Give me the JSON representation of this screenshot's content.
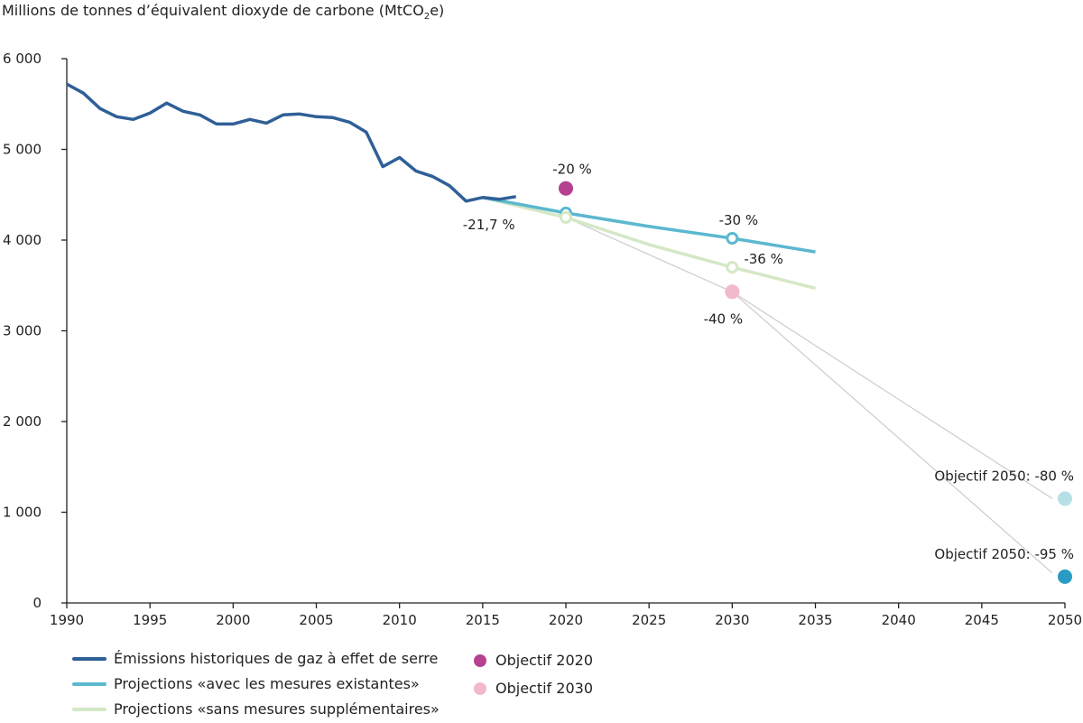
{
  "title": {
    "main": "Millions de tonnes d’équivalent dioxyde de carbone (MtCO",
    "sub": "2",
    "tail": "e)"
  },
  "colors": {
    "historical": "#2f5f97",
    "wem": "#5bb8cf",
    "wam": "#d4e8c6",
    "target2020": "#b5418f",
    "target2030": "#f2b8cc",
    "target2050_80": "#b6e0e6",
    "target2050_95": "#2a9bc4",
    "guide": "#cccccc",
    "axis": "#222222"
  },
  "chart_data": {
    "type": "line",
    "ylim": [
      0,
      6000
    ],
    "xlim": [
      1990,
      2050
    ],
    "yticks": [
      0,
      1000,
      2000,
      3000,
      4000,
      5000,
      6000
    ],
    "ytick_labels": [
      "0",
      "1 000",
      "2 000",
      "3 000",
      "4 000",
      "5 000",
      "6 000"
    ],
    "xticks": [
      1990,
      1995,
      2000,
      2005,
      2010,
      2015,
      2020,
      2025,
      2030,
      2035,
      2040,
      2045,
      2050
    ],
    "xtick_labels": [
      "1990",
      "1995",
      "2000",
      "2005",
      "2010",
      "2015",
      "2020",
      "2025",
      "2030",
      "2035",
      "2040",
      "2045",
      "2050"
    ],
    "series": [
      {
        "name": "Émissions historiques de gaz à effet de serre",
        "x": [
          1990,
          1991,
          1992,
          1993,
          1994,
          1995,
          1996,
          1997,
          1998,
          1999,
          2000,
          2001,
          2002,
          2003,
          2004,
          2005,
          2006,
          2007,
          2008,
          2009,
          2010,
          2011,
          2012,
          2013,
          2014,
          2015,
          2016,
          2017
        ],
        "y": [
          5720,
          5620,
          5450,
          5360,
          5330,
          5400,
          5510,
          5420,
          5380,
          5280,
          5280,
          5330,
          5290,
          5380,
          5390,
          5360,
          5350,
          5300,
          5190,
          4810,
          4910,
          4760,
          4700,
          4600,
          4430,
          4470,
          4450,
          4480
        ]
      },
      {
        "name": "Projections «avec les mesures existantes»",
        "x": [
          2015,
          2020,
          2025,
          2030,
          2035
        ],
        "y": [
          4470,
          4300,
          4150,
          4020,
          3870
        ]
      },
      {
        "name": "Projections «sans mesures supplémentaires»",
        "x": [
          2015,
          2020,
          2025,
          2030,
          2035
        ],
        "y": [
          4470,
          4250,
          3950,
          3700,
          3470
        ]
      }
    ],
    "points": [
      {
        "name": "Objectif 2020",
        "x": 2020,
        "y": 4570,
        "label": "-20 %"
      },
      {
        "name": "Objectif 2030",
        "x": 2030,
        "y": 3430,
        "label": "-40 %"
      },
      {
        "name": "Objectif 2050: -80 %",
        "x": 2050,
        "y": 1150,
        "label": "Objectif 2050: -80 %"
      },
      {
        "name": "Objectif 2050: -95 %",
        "x": 2050,
        "y": 290,
        "label": "Objectif 2050: -95 %"
      }
    ],
    "annotations": [
      {
        "text": "-21,7 %",
        "x": 2017,
        "y": 4470
      },
      {
        "text": "-30 %",
        "x": 2030,
        "y": 4020
      },
      {
        "text": "-36 %",
        "x": 2030,
        "y": 3700
      }
    ],
    "legend": {
      "placement": "bottom",
      "items": [
        "Émissions historiques de gaz à effet de serre",
        "Projections «avec les mesures existantes»",
        "Projections «sans mesures supplémentaires»",
        "Objectif 2020",
        "Objectif 2030"
      ]
    }
  }
}
